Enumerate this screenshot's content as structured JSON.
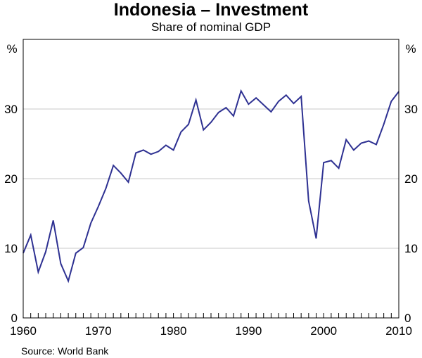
{
  "title": "Indonesia – Investment",
  "subtitle": "Share of nominal GDP",
  "source": "Source: World Bank",
  "chart_data": {
    "type": "line",
    "title": "Indonesia – Investment",
    "subtitle": "Share of nominal GDP",
    "ylabel_left": "%",
    "ylabel_right": "%",
    "xlim": [
      1960,
      2010
    ],
    "ylim": [
      0,
      40
    ],
    "yticks": [
      0,
      10,
      20,
      30
    ],
    "xticks": [
      1960,
      1970,
      1980,
      1990,
      2000,
      2010
    ],
    "grid": true,
    "line_color": "#2e3192",
    "series": [
      {
        "x": [
          1960,
          1961,
          1962,
          1963,
          1964,
          1965,
          1966,
          1967,
          1968,
          1969,
          1970,
          1971,
          1972,
          1973,
          1974,
          1975,
          1976,
          1977,
          1978,
          1979,
          1980,
          1981,
          1982,
          1983,
          1984,
          1985,
          1986,
          1987,
          1988,
          1989,
          1990,
          1991,
          1992,
          1993,
          1994,
          1995,
          1996,
          1997,
          1998,
          1999,
          2000,
          2001,
          2002,
          2003,
          2004,
          2005,
          2006,
          2007,
          2008,
          2009,
          2010
        ],
        "values": [
          9.3,
          11.9,
          6.6,
          9.5,
          14,
          7.8,
          5.3,
          9.3,
          10.1,
          13.6,
          16,
          18.6,
          21.9,
          20.8,
          19.5,
          23.7,
          24.1,
          23.5,
          23.9,
          24.8,
          24.1,
          26.7,
          27.8,
          31.3,
          27,
          28.1,
          29.5,
          30.2,
          29,
          32.6,
          30.7,
          31.6,
          30.6,
          29.6,
          31.1,
          32,
          30.8,
          31.8,
          16.8,
          11.4,
          22.3,
          22.6,
          21.5,
          25.6,
          24.1,
          25.1,
          25.4,
          24.9,
          27.8,
          31.1,
          32.5
        ]
      }
    ]
  }
}
